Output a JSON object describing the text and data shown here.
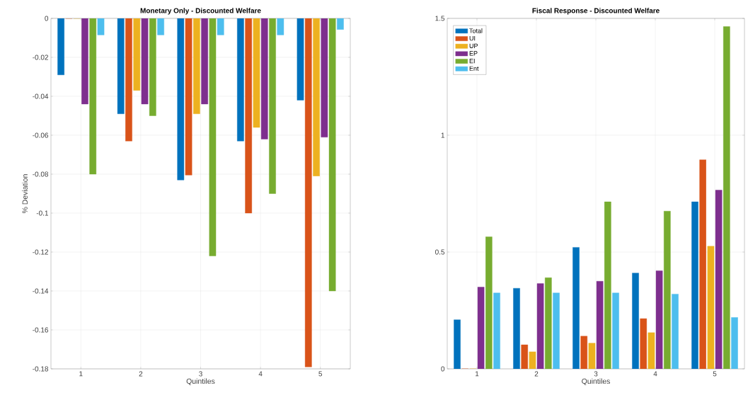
{
  "chart_data": [
    {
      "type": "bar",
      "title": "Monetary Only - Discounted Welfare",
      "xlabel": "Quintiles",
      "ylabel": "% Deviation",
      "categories": [
        "1",
        "2",
        "3",
        "4",
        "5"
      ],
      "series": [
        {
          "color": "#0072bd",
          "values": [
            -0.029,
            -0.049,
            -0.083,
            -0.063,
            -0.042
          ]
        },
        {
          "color": "#d95319",
          "values": [
            0,
            -0.063,
            -0.0805,
            -0.1,
            -0.179
          ]
        },
        {
          "color": "#edb120",
          "values": [
            0,
            -0.037,
            -0.049,
            -0.056,
            -0.081
          ]
        },
        {
          "color": "#7e2f8e",
          "values": [
            -0.044,
            -0.044,
            -0.044,
            -0.062,
            -0.061
          ]
        },
        {
          "color": "#77ac30",
          "values": [
            -0.08,
            -0.05,
            -0.122,
            -0.09,
            -0.14
          ]
        },
        {
          "color": "#4dbeee",
          "values": [
            -0.0085,
            -0.0085,
            -0.0085,
            -0.0085,
            -0.0057
          ]
        }
      ],
      "ylim": [
        -0.18,
        0
      ],
      "yticks": [
        -0.18,
        -0.16,
        -0.14,
        -0.12,
        -0.1,
        -0.08,
        -0.06,
        -0.04,
        -0.02,
        0
      ],
      "grid": true
    },
    {
      "type": "bar",
      "title": "Fiscal Response - Discounted Welfare",
      "xlabel": "Quintiles",
      "categories": [
        "1",
        "2",
        "3",
        "4",
        "5"
      ],
      "series": [
        {
          "name": "Total",
          "color": "#0072bd",
          "values": [
            0.21,
            0.345,
            0.52,
            0.41,
            0.715
          ]
        },
        {
          "name": "UI",
          "color": "#d95319",
          "values": [
            0,
            0.103,
            0.14,
            0.215,
            0.895
          ]
        },
        {
          "name": "UP",
          "color": "#edb120",
          "values": [
            0,
            0.073,
            0.11,
            0.155,
            0.525
          ]
        },
        {
          "name": "EP",
          "color": "#7e2f8e",
          "values": [
            0.35,
            0.365,
            0.375,
            0.42,
            0.765
          ]
        },
        {
          "name": "EI",
          "color": "#77ac30",
          "values": [
            0.565,
            0.39,
            0.715,
            0.675,
            1.465
          ]
        },
        {
          "name": "Ent",
          "color": "#4dbeee",
          "values": [
            0.325,
            0.325,
            0.325,
            0.32,
            0.22
          ]
        }
      ],
      "ylim": [
        0,
        1.5
      ],
      "yticks": [
        0,
        0.5,
        1,
        1.5
      ],
      "grid": true,
      "legend": "top left"
    }
  ]
}
